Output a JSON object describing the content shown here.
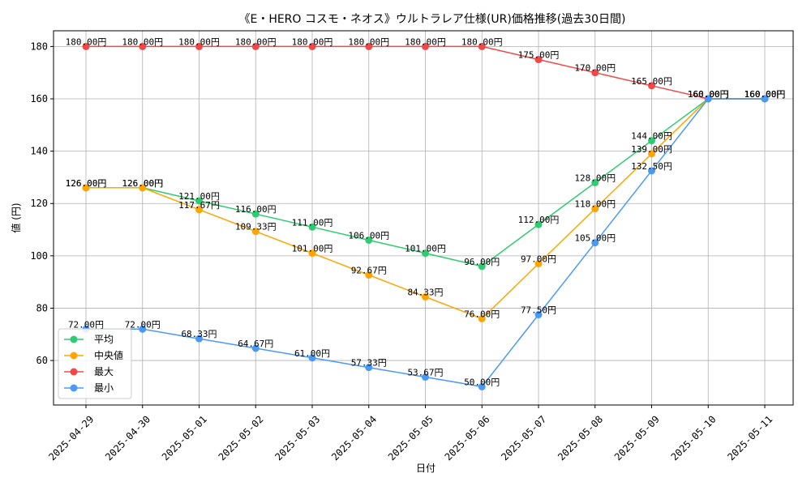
{
  "chart_data": {
    "type": "line",
    "title": "《E・HERO コスモ・ネオス》ウルトラレア仕様(UR)価格推移(過去30日間)",
    "xlabel": "日付",
    "ylabel": "値 (円)",
    "ylim": [
      43,
      186
    ],
    "yticks": [
      60,
      80,
      100,
      120,
      140,
      160,
      180
    ],
    "grid": true,
    "legend_position": "lower-left",
    "value_suffix": "円",
    "categories": [
      "2025-04-29",
      "2025-04-30",
      "2025-05-01",
      "2025-05-02",
      "2025-05-03",
      "2025-05-04",
      "2025-05-05",
      "2025-05-06",
      "2025-05-07",
      "2025-05-08",
      "2025-05-09",
      "2025-05-10",
      "2025-05-11"
    ],
    "series": [
      {
        "name": "平均",
        "color": "#2ecc71",
        "values": [
          126.0,
          126.0,
          121.0,
          116.0,
          111.0,
          106.0,
          101.0,
          96.0,
          112.0,
          128.0,
          144.0,
          160.0,
          160.0
        ]
      },
      {
        "name": "中央値",
        "color": "#ffa500",
        "values": [
          126.0,
          126.0,
          117.67,
          109.33,
          101.0,
          92.67,
          84.33,
          76.0,
          97.0,
          118.0,
          139.0,
          160.0,
          160.0
        ]
      },
      {
        "name": "最大",
        "color": "#f04848",
        "values": [
          180.0,
          180.0,
          180.0,
          180.0,
          180.0,
          180.0,
          180.0,
          180.0,
          175.0,
          170.0,
          165.0,
          160.0,
          160.0
        ]
      },
      {
        "name": "最小",
        "color": "#4a9af5",
        "values": [
          72.0,
          72.0,
          68.33,
          64.67,
          61.0,
          57.33,
          53.67,
          50.0,
          77.5,
          105.0,
          132.5,
          160.0,
          160.0
        ]
      }
    ]
  }
}
